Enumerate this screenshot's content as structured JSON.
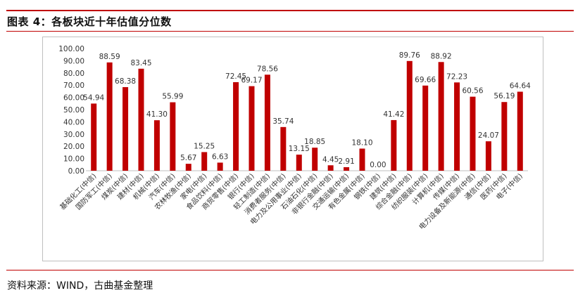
{
  "figure": {
    "title": "图表 4：各板块近十年估值分位数",
    "source": "资料来源：WIND，古曲基金整理"
  },
  "colors": {
    "accent": "#c00000",
    "bar": "#c00000",
    "frame": "#bfbfbf"
  },
  "chart_data": {
    "type": "bar",
    "title": "",
    "xlabel": "",
    "ylabel": "",
    "ylim": [
      0,
      100
    ],
    "yticks": [
      "100.00",
      "90.00",
      "80.00",
      "70.00",
      "60.00",
      "50.00",
      "40.00",
      "30.00",
      "20.00",
      "10.00",
      "0.00"
    ],
    "grid": false,
    "legend": false,
    "categories": [
      "基础化工(中信)",
      "国防军工(中信)",
      "煤炭(中信)",
      "建材(中信)",
      "机械(中信)",
      "汽车(中信)",
      "农林牧渔(中信)",
      "家电(中信)",
      "食品饮料(中信)",
      "商贸零售(中信)",
      "银行(中信)",
      "轻工制造(中信)",
      "消费者服务(中信)",
      "电力及公用事业(中信)",
      "石油石化(中信)",
      "非银行金融(中信)",
      "交通运输(中信)",
      "有色金属(中信)",
      "钢铁(中信)",
      "建筑(中信)",
      "综合金融(中信)",
      "纺织服装(中信)",
      "计算机(中信)",
      "传媒(中信)",
      "电力设备及新能源(中信)",
      "通信(中信)",
      "医药(中信)",
      "电子(中信)"
    ],
    "values": [
      54.94,
      88.59,
      68.38,
      83.45,
      41.3,
      55.99,
      5.67,
      15.25,
      6.63,
      72.45,
      69.17,
      78.56,
      35.74,
      13.15,
      18.85,
      4.45,
      2.91,
      18.1,
      0.0,
      41.42,
      89.76,
      69.66,
      88.92,
      72.23,
      60.56,
      24.07,
      56.19,
      64.64
    ],
    "value_labels": [
      "54.94",
      "88.59",
      "68.38",
      "83.45",
      "41.30",
      "55.99",
      "5.67",
      "15.25",
      "6.63",
      "72.45",
      "69.17",
      "78.56",
      "35.74",
      "13.15",
      "18.85",
      "4.45",
      "2.91",
      "18.10",
      "0.00",
      "41.42",
      "89.76",
      "69.66",
      "88.92",
      "72.23",
      "60.56",
      "24.07",
      "56.19",
      "64.64"
    ]
  }
}
